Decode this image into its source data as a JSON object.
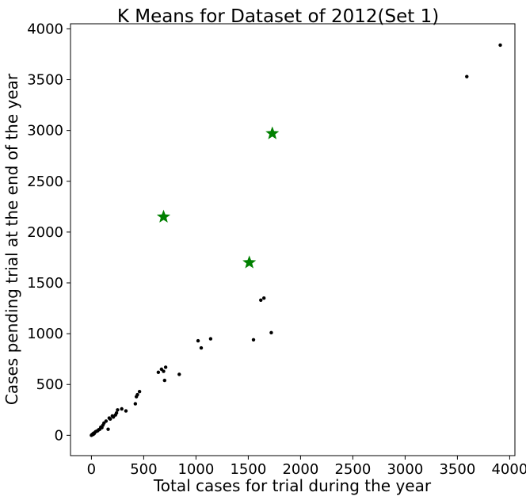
{
  "chart_data": {
    "type": "scatter",
    "title": "K Means for Dataset of 2012(Set 1)",
    "xlabel": "Total cases for trial during the year",
    "ylabel": "Cases pending trial at the end of the year",
    "xlim": [
      -200,
      4050
    ],
    "ylim": [
      -200,
      4050
    ],
    "xticks": [
      0,
      500,
      1000,
      1500,
      2000,
      2500,
      3000,
      3500,
      4000
    ],
    "yticks": [
      0,
      500,
      1000,
      1500,
      2000,
      2500,
      3000,
      3500,
      4000
    ],
    "xtick_labels": [
      "0",
      "500",
      "1000",
      "1500",
      "2000",
      "2500",
      "3000",
      "3500",
      "4000"
    ],
    "ytick_labels": [
      "0",
      "500",
      "1000",
      "1500",
      "2000",
      "2500",
      "3000",
      "3500",
      "4000"
    ],
    "grid": false,
    "series": [
      {
        "marker": "dot",
        "color": "#000000",
        "x": [
          0,
          5,
          10,
          15,
          20,
          25,
          30,
          40,
          50,
          60,
          70,
          80,
          90,
          100,
          110,
          120,
          140,
          160,
          170,
          180,
          200,
          210,
          230,
          240,
          250,
          290,
          330,
          420,
          430,
          440,
          460,
          640,
          670,
          690,
          700,
          710,
          840,
          1020,
          1050,
          1140,
          1550,
          1620,
          1650,
          1720,
          3590,
          3910
        ],
        "y": [
          0,
          5,
          10,
          8,
          20,
          15,
          25,
          35,
          40,
          45,
          55,
          60,
          80,
          75,
          100,
          120,
          140,
          60,
          170,
          160,
          190,
          180,
          200,
          220,
          250,
          260,
          240,
          310,
          380,
          400,
          430,
          620,
          650,
          630,
          540,
          670,
          600,
          930,
          860,
          950,
          940,
          1330,
          1350,
          1010,
          3530,
          3840
        ]
      },
      {
        "marker": "star",
        "color": "#008000",
        "x": [
          690,
          1510,
          1730
        ],
        "y": [
          2150,
          1700,
          2970
        ]
      }
    ]
  }
}
